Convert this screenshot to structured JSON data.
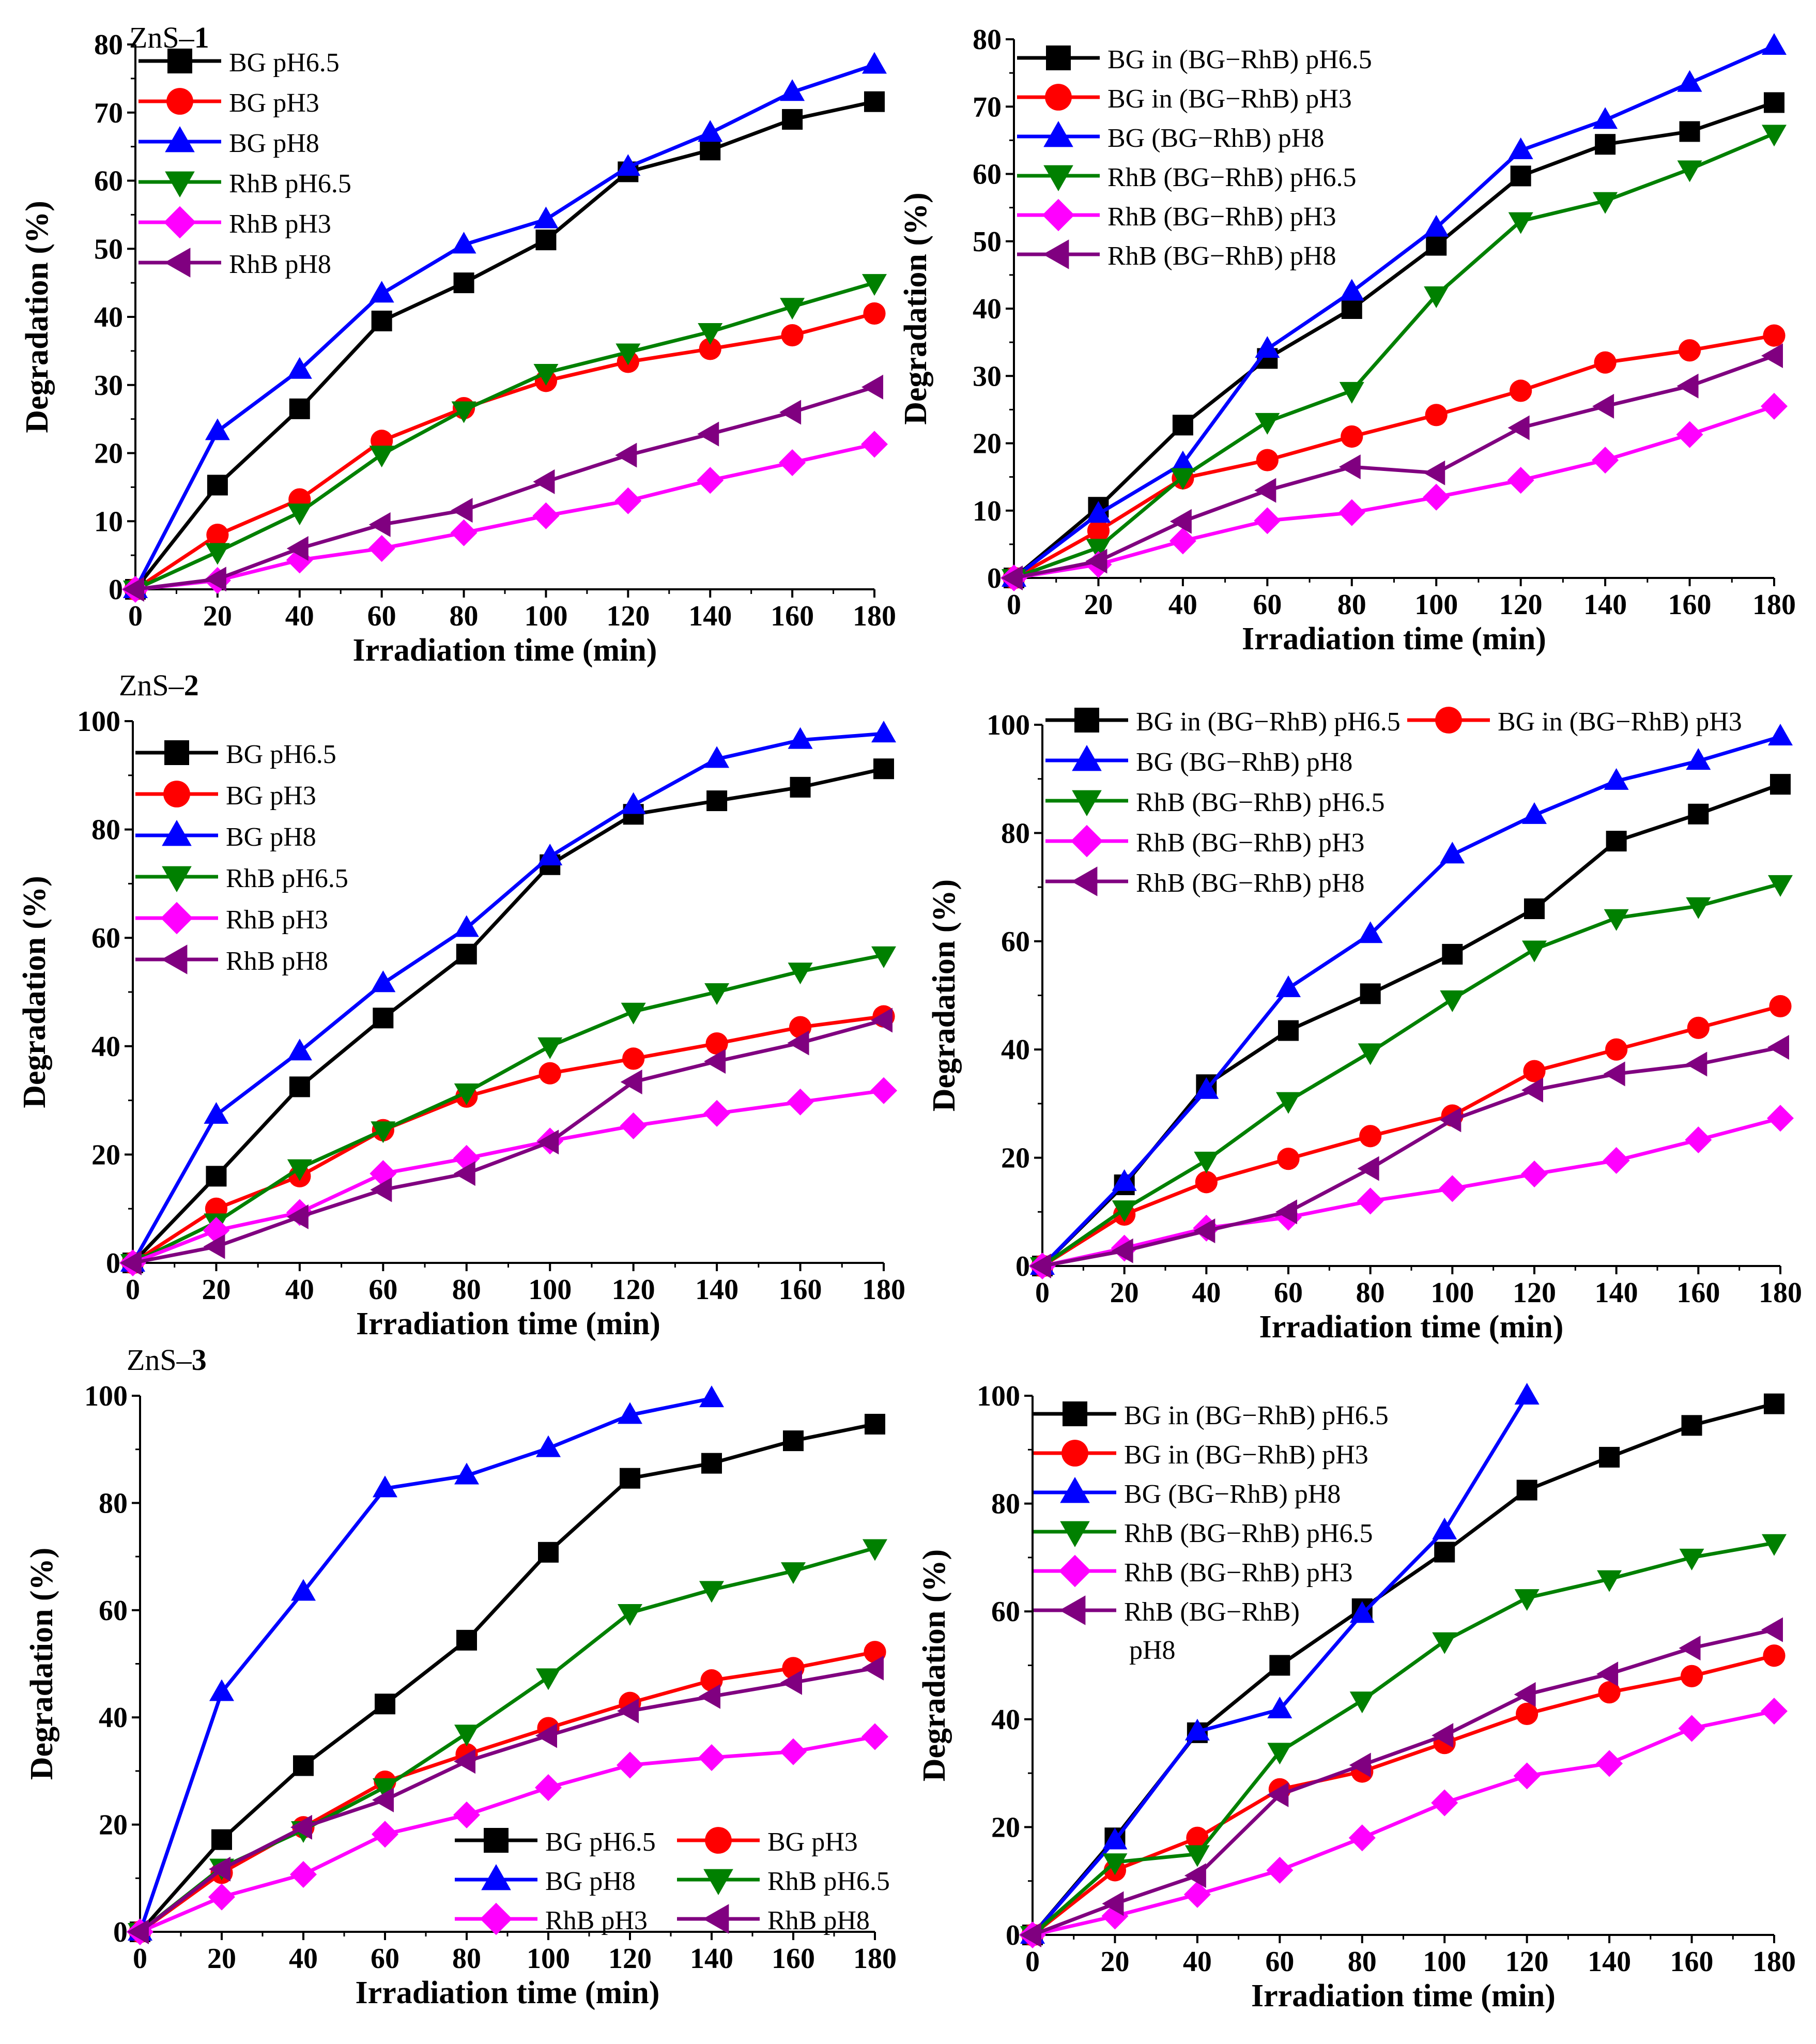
{
  "figure": {
    "section_labels": [
      {
        "prefix": "ZnS–",
        "num": "1"
      },
      {
        "prefix": "ZnS–",
        "num": "2"
      },
      {
        "prefix": "ZnS–",
        "num": "3"
      }
    ]
  },
  "marker_styles": [
    {
      "marker": "square",
      "color": "#000000"
    },
    {
      "marker": "circle",
      "color": "#ff0000"
    },
    {
      "marker": "triangle-up",
      "color": "#0000ff"
    },
    {
      "marker": "triangle-down",
      "color": "#008000"
    },
    {
      "marker": "diamond",
      "color": "#ff00ff"
    },
    {
      "marker": "triangle-left",
      "color": "#800080"
    }
  ],
  "chart_data": [
    {
      "id": "znS1-single",
      "type": "line",
      "xlabel": "Irradiation time (min)",
      "ylabel": "Degradation (%)",
      "xlim": [
        0,
        180
      ],
      "ylim": [
        0,
        80
      ],
      "xticks": [
        0,
        20,
        40,
        60,
        80,
        100,
        120,
        140,
        160,
        180
      ],
      "yticks": [
        0,
        10,
        20,
        30,
        40,
        50,
        60,
        70,
        80
      ],
      "legend_position": "top-left",
      "x": [
        0,
        20,
        40,
        60,
        80,
        100,
        120,
        140,
        160,
        180
      ],
      "series": [
        {
          "name": "BG pH6.5",
          "values": [
            0,
            15.3,
            26.5,
            39.4,
            45,
            51.3,
            61.3,
            64.5,
            69,
            71.6
          ]
        },
        {
          "name": "BG pH3",
          "values": [
            0,
            8,
            13.2,
            21.8,
            26.6,
            30.6,
            33.4,
            35.3,
            37.3,
            40.5
          ]
        },
        {
          "name": "BG pH8",
          "values": [
            0,
            23.2,
            32.2,
            43.4,
            50.6,
            54.3,
            62,
            67,
            73,
            77
          ]
        },
        {
          "name": "RhB pH6.5",
          "values": [
            0,
            5.5,
            11.3,
            19.8,
            26.3,
            31.8,
            34.8,
            37.8,
            41.5,
            45
          ]
        },
        {
          "name": "RhB pH3",
          "values": [
            0,
            1.3,
            4.3,
            6,
            8.3,
            10.8,
            13,
            16,
            18.6,
            21.3
          ]
        },
        {
          "name": "RhB pH8",
          "values": [
            0,
            1.5,
            6,
            9.5,
            11.6,
            15.8,
            19.7,
            22.8,
            26,
            29.7
          ]
        }
      ]
    },
    {
      "id": "znS1-mixture",
      "type": "line",
      "xlabel": "Irradiation time (min)",
      "ylabel": "Degradation (%)",
      "xlim": [
        0,
        180
      ],
      "ylim": [
        0,
        80
      ],
      "xticks": [
        0,
        20,
        40,
        60,
        80,
        100,
        120,
        140,
        160,
        180
      ],
      "yticks": [
        0,
        10,
        20,
        30,
        40,
        50,
        60,
        70,
        80
      ],
      "legend_position": "top-left",
      "x": [
        0,
        20,
        40,
        60,
        80,
        100,
        120,
        140,
        160,
        180
      ],
      "series": [
        {
          "name": "BG in (BG−RhB) pH6.5",
          "values": [
            0,
            10.5,
            22.7,
            32.6,
            40,
            49.4,
            59.7,
            64.4,
            66.3,
            70.6
          ]
        },
        {
          "name": "BG in (BG−RhB) pH3",
          "values": [
            0,
            7,
            14.8,
            17.5,
            21,
            24.2,
            27.8,
            32,
            33.8,
            36
          ]
        },
        {
          "name": "BG (BG−RhB) pH8",
          "values": [
            0,
            9.5,
            17,
            34,
            42.5,
            52,
            63.5,
            68,
            73.5,
            79
          ]
        },
        {
          "name": "RhB (BG−RhB) pH6.5",
          "values": [
            0,
            4.5,
            15,
            23.2,
            27.8,
            42,
            53,
            56,
            60.7,
            66
          ]
        },
        {
          "name": "RhB (BG−RhB) pH3",
          "values": [
            0,
            2,
            5.5,
            8.5,
            9.7,
            12,
            14.5,
            17.5,
            21.3,
            25.5
          ]
        },
        {
          "name": "RhB (BG−RhB) pH8",
          "values": [
            0,
            2.5,
            8.4,
            13,
            16.5,
            15.6,
            22.3,
            25.5,
            28.5,
            33
          ]
        }
      ]
    },
    {
      "id": "znS2-single",
      "type": "line",
      "xlabel": "Irradiation time (min)",
      "ylabel": "Degradation (%)",
      "xlim": [
        0,
        180
      ],
      "ylim": [
        0,
        100
      ],
      "xticks": [
        0,
        20,
        40,
        60,
        80,
        100,
        120,
        140,
        160,
        180
      ],
      "yticks": [
        0,
        20,
        40,
        60,
        80,
        100
      ],
      "legend_position": "top-left",
      "x": [
        0,
        20,
        40,
        60,
        80,
        100,
        120,
        140,
        160,
        180
      ],
      "series": [
        {
          "name": "BG pH6.5",
          "values": [
            0,
            16,
            32.5,
            45.2,
            57,
            73.5,
            82.8,
            85.3,
            87.8,
            91.2
          ]
        },
        {
          "name": "BG pH3",
          "values": [
            0,
            10,
            16,
            24.5,
            30.7,
            35,
            37.7,
            40.5,
            43.5,
            45.5
          ]
        },
        {
          "name": "BG pH8",
          "values": [
            0,
            27.3,
            39,
            51.6,
            61.8,
            75,
            84.5,
            93,
            96.5,
            97.7
          ]
        },
        {
          "name": "RhB pH6.5",
          "values": [
            0,
            7.5,
            17.5,
            24.5,
            31.5,
            40,
            46.4,
            50,
            53.8,
            56.8
          ]
        },
        {
          "name": "RhB pH3",
          "values": [
            0,
            6,
            9.3,
            16.5,
            19.3,
            22.5,
            25.3,
            27.6,
            29.7,
            31.8
          ]
        },
        {
          "name": "RhB pH8",
          "values": [
            0,
            3,
            8.5,
            13.5,
            16.5,
            22.3,
            33.4,
            37.2,
            40.6,
            44.8
          ]
        }
      ]
    },
    {
      "id": "znS2-mixture",
      "type": "line",
      "xlabel": "Irradiation time (min)",
      "ylabel": "Degradation (%)",
      "xlim": [
        0,
        180
      ],
      "ylim": [
        0,
        100
      ],
      "xticks": [
        0,
        20,
        40,
        60,
        80,
        100,
        120,
        140,
        160,
        180
      ],
      "yticks": [
        0,
        20,
        40,
        60,
        80,
        100
      ],
      "legend_position": "top-left",
      "x": [
        0,
        20,
        40,
        60,
        80,
        100,
        120,
        140,
        160,
        180
      ],
      "series": [
        {
          "name": "BG in (BG−RhB) pH6.5",
          "values": [
            0,
            15,
            33.5,
            43.5,
            50.3,
            57.6,
            66,
            78.5,
            83.5,
            89
          ]
        },
        {
          "name": "BG in (BG−RhB) pH3",
          "values": [
            0,
            9.5,
            15.5,
            19.8,
            24,
            27.8,
            36,
            40,
            44,
            48
          ]
        },
        {
          "name": "BG (BG−RhB) pH8",
          "values": [
            0,
            15.5,
            32.5,
            51.3,
            61.3,
            76,
            83.3,
            89.6,
            93.3,
            97.8
          ]
        },
        {
          "name": "RhB (BG−RhB) pH6.5",
          "values": [
            0,
            10.5,
            19.5,
            30.5,
            39.5,
            49.3,
            58.5,
            64.3,
            66.5,
            70.6
          ]
        },
        {
          "name": "RhB (BG−RhB) pH3",
          "values": [
            0,
            3.3,
            7,
            9,
            12,
            14.3,
            17,
            19.5,
            23.3,
            27.3
          ]
        },
        {
          "name": "RhB (BG−RhB) pH8",
          "values": [
            0,
            2.8,
            6.5,
            10,
            18,
            27,
            32.5,
            35.5,
            37.3,
            40.4
          ]
        }
      ]
    },
    {
      "id": "znS3-single",
      "type": "line",
      "xlabel": "Irradiation time (min)",
      "ylabel": "Degradation (%)",
      "xlim": [
        0,
        180
      ],
      "ylim": [
        0,
        100
      ],
      "xticks": [
        0,
        20,
        40,
        60,
        80,
        100,
        120,
        140,
        160,
        180
      ],
      "yticks": [
        0,
        20,
        40,
        60,
        80,
        100
      ],
      "legend_position": "bottom-right",
      "legend_columns": 2,
      "x": [
        0,
        20,
        40,
        60,
        80,
        100,
        120,
        140,
        160,
        180
      ],
      "series": [
        {
          "name": "BG pH6.5",
          "values": [
            0,
            17.2,
            31,
            42.5,
            54.4,
            70.8,
            84.6,
            87.4,
            91.6,
            94.7
          ]
        },
        {
          "name": "BG pH3",
          "values": [
            0,
            11,
            19.5,
            28,
            33.1,
            38,
            42.7,
            46.9,
            49.2,
            52.2
          ]
        },
        {
          "name": "BG pH8",
          "values": [
            0,
            44.7,
            63.4,
            82.7,
            85.1,
            90.2,
            96.4,
            99.5,
            null,
            null
          ]
        },
        {
          "name": "RhB pH6.5",
          "values": [
            0,
            12,
            19,
            27,
            37,
            47.5,
            59.5,
            63.8,
            67.3,
            71.6
          ]
        },
        {
          "name": "RhB pH3",
          "values": [
            0,
            6.5,
            10.7,
            18.2,
            21.8,
            26.9,
            31.1,
            32.5,
            33.6,
            36.4
          ]
        },
        {
          "name": "RhB pH8",
          "values": [
            0,
            11.7,
            19.5,
            24.6,
            31.8,
            36.6,
            41.2,
            43.9,
            46.5,
            49.2
          ]
        }
      ]
    },
    {
      "id": "znS3-mixture",
      "type": "line",
      "xlabel": "Irradiation time (min)",
      "ylabel": "Degradation (%)",
      "xlim": [
        0,
        180
      ],
      "ylim": [
        0,
        100
      ],
      "xticks": [
        0,
        20,
        40,
        60,
        80,
        100,
        120,
        140,
        160,
        180
      ],
      "yticks": [
        0,
        20,
        40,
        60,
        80,
        100
      ],
      "legend_position": "top-left",
      "x": [
        0,
        20,
        40,
        60,
        80,
        100,
        120,
        140,
        160,
        180
      ],
      "series": [
        {
          "name": "BG in (BG−RhB) pH6.5",
          "values": [
            0,
            18,
            37.5,
            50,
            60.5,
            71,
            82.5,
            88.6,
            94.5,
            98.5
          ]
        },
        {
          "name": "BG in (BG−RhB) pH3",
          "values": [
            0,
            12,
            18,
            27,
            30.3,
            35.6,
            41,
            45,
            48,
            51.8
          ]
        },
        {
          "name": "BG (BG−RhB) pH8",
          "values": [
            0,
            17.5,
            37.7,
            41.8,
            59.5,
            75,
            100,
            null,
            null,
            null
          ]
        },
        {
          "name": "RhB (BG−RhB) pH6.5",
          "values": [
            0,
            13.5,
            15,
            34,
            43.5,
            54.5,
            62.5,
            66,
            70,
            72.7
          ]
        },
        {
          "name": "RhB (BG−RhB) pH3",
          "values": [
            0,
            3.5,
            7.5,
            12,
            18,
            24.5,
            29.5,
            31.8,
            38.3,
            41.5
          ]
        },
        {
          "name": "RhB (BG−RhB) pH8",
          "values": [
            0,
            5.8,
            11,
            26,
            31.5,
            37,
            44.6,
            48.4,
            53.2,
            56.6
          ],
          "legend_lines": [
            "RhB (BG−RhB)",
            "pH8"
          ]
        }
      ]
    }
  ]
}
